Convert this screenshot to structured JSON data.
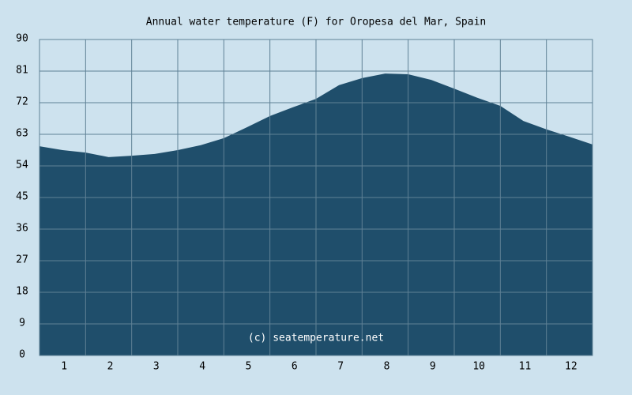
{
  "chart_data": {
    "type": "area",
    "title": "Annual water temperature (F) for Oropesa del Mar, Spain",
    "annotation": "(c) seatemperature.net",
    "x": [
      0.5,
      1,
      1.5,
      2,
      2.5,
      3,
      3.5,
      4,
      4.5,
      5,
      5.5,
      6,
      6.5,
      7,
      7.5,
      8,
      8.5,
      9,
      9.5,
      10,
      10.5,
      11,
      11.5,
      12,
      12.5
    ],
    "series": [
      {
        "color": "#1f4e6b",
        "values": [
          59.6,
          58.5,
          57.8,
          56.5,
          56.9,
          57.4,
          58.5,
          59.9,
          61.9,
          65,
          68.2,
          70.7,
          73.1,
          77,
          79,
          80.3,
          80.1,
          78.5,
          76,
          73.4,
          71.1,
          66.8,
          64.4,
          62.3,
          60.1
        ]
      }
    ],
    "xlim": [
      0.5,
      12.5
    ],
    "xticks": [
      1,
      2,
      3,
      4,
      5,
      6,
      7,
      8,
      9,
      10,
      11,
      12
    ],
    "ylim": [
      0,
      90
    ],
    "yticks": [
      0,
      9,
      18,
      27,
      36,
      45,
      54,
      63,
      72,
      81,
      90
    ],
    "grid": true
  }
}
